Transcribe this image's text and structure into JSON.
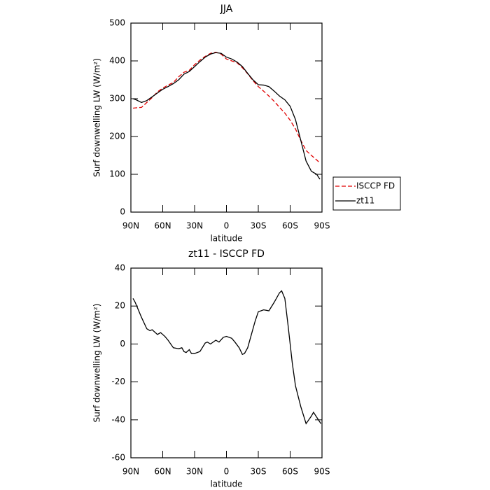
{
  "chart_data": [
    {
      "type": "line",
      "title": "JJA",
      "x_label": "latitude",
      "y_label": "Surf downwelling LW (W/m²)",
      "x": [
        88,
        85,
        80,
        75,
        70,
        65,
        60,
        55,
        50,
        45,
        40,
        35,
        30,
        25,
        20,
        15,
        10,
        5,
        0,
        -5,
        -10,
        -15,
        -20,
        -25,
        -30,
        -35,
        -40,
        -45,
        -50,
        -55,
        -60,
        -65,
        -70,
        -75,
        -80,
        -85,
        -88
      ],
      "series": [
        {
          "name": "ISCCP FD",
          "color": "#e00000",
          "dashed": true,
          "values": [
            275,
            276,
            277,
            290,
            303,
            318,
            328,
            336,
            343,
            358,
            370,
            375,
            390,
            402,
            412,
            420,
            423,
            418,
            405,
            400,
            395,
            382,
            366,
            348,
            332,
            320,
            307,
            293,
            277,
            262,
            243,
            220,
            190,
            163,
            150,
            138,
            130
          ]
        },
        {
          "name": "zt11",
          "color": "#000000",
          "dashed": false,
          "values": [
            300,
            297,
            290,
            295,
            305,
            315,
            325,
            332,
            340,
            350,
            365,
            372,
            385,
            398,
            410,
            418,
            422,
            420,
            410,
            405,
            397,
            385,
            367,
            350,
            337,
            336,
            332,
            320,
            307,
            297,
            280,
            245,
            190,
            135,
            108,
            100,
            87
          ]
        }
      ],
      "xlim": [
        90,
        -90
      ],
      "xticks": [
        {
          "value": 90,
          "label": "90N"
        },
        {
          "value": 60,
          "label": "60N"
        },
        {
          "value": 30,
          "label": "30N"
        },
        0,
        {
          "value": -30,
          "label": "30S"
        },
        {
          "value": -60,
          "label": "60S"
        },
        {
          "value": -90,
          "label": "90S"
        }
      ],
      "ylim": [
        0,
        500
      ],
      "yticks": [
        0,
        100,
        200,
        300,
        400,
        500
      ],
      "legend": "outside-right"
    },
    {
      "type": "line",
      "title": "zt11 - ISCCP FD",
      "x_label": "latitude",
      "y_label": "Surf downwelling LW (W/m²)",
      "x": [
        88,
        86,
        80,
        75,
        72,
        70,
        65,
        62,
        58,
        55,
        50,
        45,
        42,
        40,
        38,
        35,
        33,
        30,
        25,
        20,
        18,
        15,
        10,
        7,
        3,
        0,
        -5,
        -8,
        -12,
        -15,
        -17,
        -20,
        -23,
        -27,
        -30,
        -35,
        -40,
        -45,
        -50,
        -52,
        -55,
        -58,
        -62,
        -65,
        -70,
        -75,
        -80,
        -82,
        -89
      ],
      "series": [
        {
          "color": "#000000",
          "values": [
            24,
            22,
            14,
            8,
            7,
            7.5,
            5,
            6,
            4,
            2,
            -2,
            -2.5,
            -2,
            -4,
            -4.5,
            -3,
            -5,
            -5,
            -4,
            0.5,
            1,
            0,
            2,
            1,
            3.5,
            4,
            3,
            1,
            -2,
            -5.5,
            -5,
            -2,
            4,
            12,
            17,
            18,
            17.5,
            22,
            27,
            28,
            24,
            10,
            -10,
            -22,
            -33,
            -42,
            -38,
            -36,
            -42
          ]
        }
      ],
      "xlim": [
        90,
        -90
      ],
      "xticks": [
        {
          "value": 90,
          "label": "90N"
        },
        {
          "value": 60,
          "label": "60N"
        },
        {
          "value": 30,
          "label": "30N"
        },
        0,
        {
          "value": -30,
          "label": "30S"
        },
        {
          "value": -60,
          "label": "60S"
        },
        {
          "value": -90,
          "label": "90S"
        }
      ],
      "ylim": [
        -60,
        40
      ],
      "yticks": [
        -60,
        -40,
        -20,
        0,
        20,
        40
      ]
    }
  ]
}
